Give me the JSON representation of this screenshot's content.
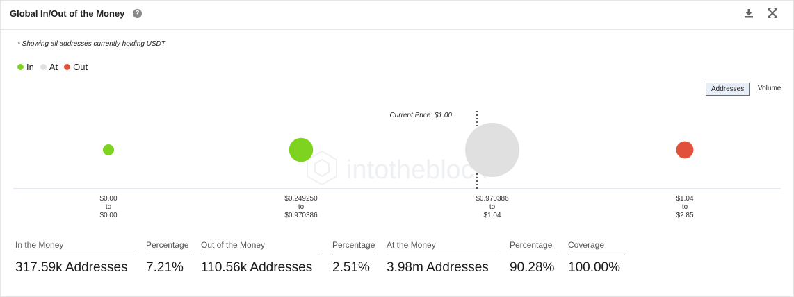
{
  "header": {
    "title": "Global In/Out of the Money",
    "help_icon": "question-circle-icon",
    "download_icon": "download-icon",
    "expand_icon": "expand-icon"
  },
  "note": "* Showing all addresses currently holding USDT",
  "legend": [
    {
      "label": "In",
      "color": "#7ed321"
    },
    {
      "label": "At",
      "color": "#e0e0e0"
    },
    {
      "label": "Out",
      "color": "#e0503a"
    }
  ],
  "toggles": {
    "addresses": "Addresses",
    "volume": "Volume",
    "active": "Addresses"
  },
  "watermark": "intotheblock",
  "chart_data": {
    "type": "scatter",
    "current_price_label": "Current Price: $1.00",
    "series_meta": "bubble size = addresses",
    "points": [
      {
        "range": [
          "$0.00",
          "to",
          "$0.00"
        ],
        "status": "In",
        "addresses": 5000
      },
      {
        "range": [
          "$0.249250",
          "to",
          "$0.970386"
        ],
        "status": "In",
        "addresses": 312590
      },
      {
        "range": [
          "$0.970386",
          "to",
          "$1.04"
        ],
        "status": "At",
        "addresses": 3980000
      },
      {
        "range": [
          "$1.04",
          "to",
          "$2.85"
        ],
        "status": "Out",
        "addresses": 110560
      }
    ]
  },
  "stats": [
    {
      "label": "In the Money",
      "value": "317.59k Addresses",
      "color": "#7ed321"
    },
    {
      "label": "Percentage",
      "value": "7.21%",
      "color": "#7ed321"
    },
    {
      "label": "Out of the Money",
      "value": "110.56k Addresses",
      "color": "#e0503a"
    },
    {
      "label": "Percentage",
      "value": "2.51%",
      "color": "#e0503a"
    },
    {
      "label": "At the Money",
      "value": "3.98m Addresses",
      "color": "#d8d8d8"
    },
    {
      "label": "Percentage",
      "value": "90.28%",
      "color": "#d8d8d8"
    },
    {
      "label": "Coverage",
      "value": "100.00%",
      "color": "#2b5d7a"
    }
  ]
}
